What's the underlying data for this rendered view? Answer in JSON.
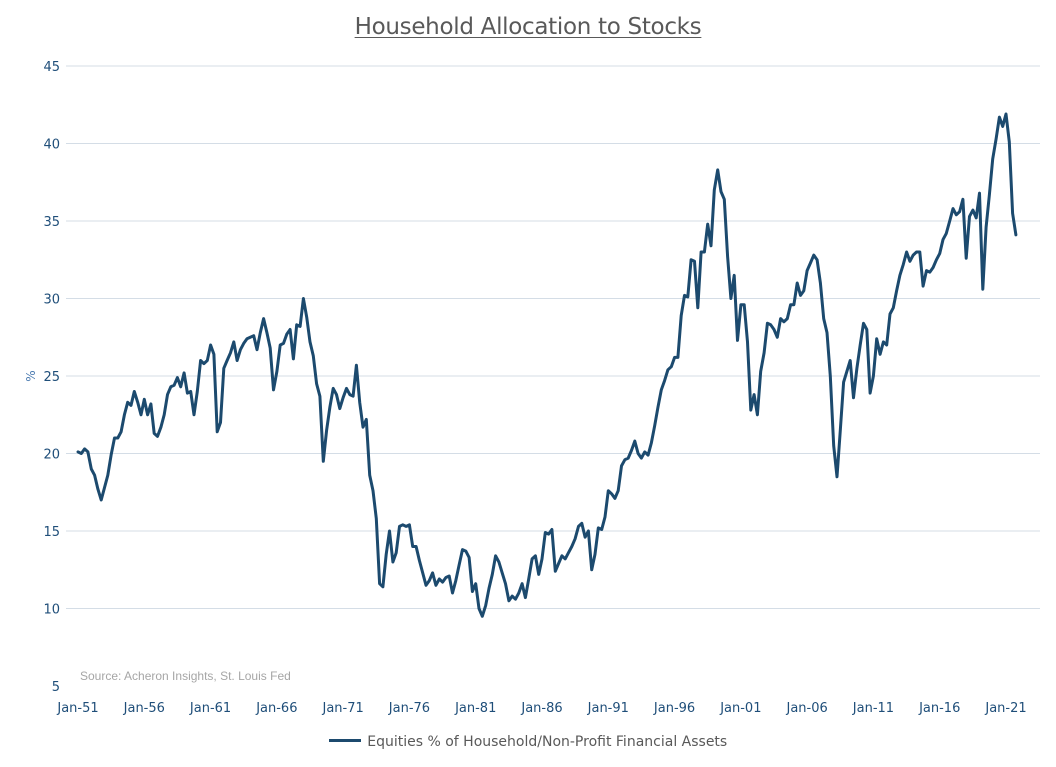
{
  "chart_data": {
    "type": "line",
    "title": "Household Allocation to Stocks",
    "ylabel": "%",
    "xlabel": "",
    "ylim": [
      5,
      45
    ],
    "yticks": [
      "5",
      "10",
      "15",
      "20",
      "25",
      "30",
      "35",
      "40",
      "45"
    ],
    "xticks": [
      "Jan-51",
      "Jan-56",
      "Jan-61",
      "Jan-66",
      "Jan-71",
      "Jan-76",
      "Jan-81",
      "Jan-86",
      "Jan-91",
      "Jan-96",
      "Jan-01",
      "Jan-06",
      "Jan-11",
      "Jan-16",
      "Jan-21"
    ],
    "x_start_year": 1951,
    "grid": "horizontal",
    "legend_position": "bottom",
    "source": "Source: Acheron Insights, St. Louis Fed",
    "series": [
      {
        "name": "Equities % of Household/Non-Profit Financial Assets",
        "color": "#1c4a6e",
        "points": [
          [
            1951.0,
            20.1
          ],
          [
            1951.25,
            20.0
          ],
          [
            1951.5,
            20.3
          ],
          [
            1951.75,
            20.1
          ],
          [
            1952.0,
            19.0
          ],
          [
            1952.25,
            18.6
          ],
          [
            1952.5,
            17.7
          ],
          [
            1952.75,
            17.0
          ],
          [
            1953.0,
            17.8
          ],
          [
            1953.25,
            18.6
          ],
          [
            1953.5,
            19.9
          ],
          [
            1953.75,
            21.0
          ],
          [
            1954.0,
            21.0
          ],
          [
            1954.25,
            21.4
          ],
          [
            1954.5,
            22.5
          ],
          [
            1954.75,
            23.3
          ],
          [
            1955.0,
            23.1
          ],
          [
            1955.25,
            24.0
          ],
          [
            1955.5,
            23.3
          ],
          [
            1955.75,
            22.5
          ],
          [
            1956.0,
            23.5
          ],
          [
            1956.25,
            22.5
          ],
          [
            1956.5,
            23.2
          ],
          [
            1956.75,
            21.3
          ],
          [
            1957.0,
            21.1
          ],
          [
            1957.25,
            21.7
          ],
          [
            1957.5,
            22.5
          ],
          [
            1957.75,
            23.8
          ],
          [
            1958.0,
            24.3
          ],
          [
            1958.25,
            24.4
          ],
          [
            1958.5,
            24.9
          ],
          [
            1958.75,
            24.3
          ],
          [
            1959.0,
            25.2
          ],
          [
            1959.25,
            23.9
          ],
          [
            1959.5,
            24.0
          ],
          [
            1959.75,
            22.5
          ],
          [
            1960.0,
            24.0
          ],
          [
            1960.25,
            26.0
          ],
          [
            1960.5,
            25.8
          ],
          [
            1960.75,
            26.0
          ],
          [
            1961.0,
            27.0
          ],
          [
            1961.25,
            26.4
          ],
          [
            1961.5,
            21.4
          ],
          [
            1961.75,
            22.0
          ],
          [
            1962.0,
            25.5
          ],
          [
            1962.25,
            26.0
          ],
          [
            1962.5,
            26.5
          ],
          [
            1962.75,
            27.2
          ],
          [
            1963.0,
            26.0
          ],
          [
            1963.25,
            26.7
          ],
          [
            1963.5,
            27.1
          ],
          [
            1963.75,
            27.4
          ],
          [
            1964.0,
            27.5
          ],
          [
            1964.25,
            27.6
          ],
          [
            1964.5,
            26.7
          ],
          [
            1964.75,
            27.8
          ],
          [
            1965.0,
            28.7
          ],
          [
            1965.25,
            27.8
          ],
          [
            1965.5,
            26.8
          ],
          [
            1965.75,
            24.1
          ],
          [
            1966.0,
            25.3
          ],
          [
            1966.25,
            27.0
          ],
          [
            1966.5,
            27.1
          ],
          [
            1966.75,
            27.7
          ],
          [
            1967.0,
            28.0
          ],
          [
            1967.25,
            26.1
          ],
          [
            1967.5,
            28.3
          ],
          [
            1967.75,
            28.2
          ],
          [
            1968.0,
            30.0
          ],
          [
            1968.25,
            28.8
          ],
          [
            1968.5,
            27.2
          ],
          [
            1968.75,
            26.3
          ],
          [
            1969.0,
            24.5
          ],
          [
            1969.25,
            23.7
          ],
          [
            1969.5,
            19.5
          ],
          [
            1969.75,
            21.5
          ],
          [
            1970.0,
            23.0
          ],
          [
            1970.25,
            24.2
          ],
          [
            1970.5,
            23.8
          ],
          [
            1970.75,
            22.9
          ],
          [
            1971.0,
            23.6
          ],
          [
            1971.25,
            24.2
          ],
          [
            1971.5,
            23.8
          ],
          [
            1971.75,
            23.7
          ],
          [
            1972.0,
            25.7
          ],
          [
            1972.25,
            23.3
          ],
          [
            1972.5,
            21.7
          ],
          [
            1972.75,
            22.2
          ],
          [
            1973.0,
            18.6
          ],
          [
            1973.25,
            17.6
          ],
          [
            1973.5,
            15.8
          ],
          [
            1973.75,
            11.6
          ],
          [
            1974.0,
            11.4
          ],
          [
            1974.25,
            13.5
          ],
          [
            1974.5,
            15.0
          ],
          [
            1974.75,
            13.0
          ],
          [
            1975.0,
            13.6
          ],
          [
            1975.25,
            15.3
          ],
          [
            1975.5,
            15.4
          ],
          [
            1975.75,
            15.3
          ],
          [
            1976.0,
            15.4
          ],
          [
            1976.25,
            14.0
          ],
          [
            1976.5,
            14.0
          ],
          [
            1976.75,
            13.1
          ],
          [
            1977.0,
            12.3
          ],
          [
            1977.25,
            11.5
          ],
          [
            1977.5,
            11.8
          ],
          [
            1977.75,
            12.3
          ],
          [
            1978.0,
            11.5
          ],
          [
            1978.25,
            11.9
          ],
          [
            1978.5,
            11.7
          ],
          [
            1978.75,
            12.0
          ],
          [
            1979.0,
            12.1
          ],
          [
            1979.25,
            11.0
          ],
          [
            1979.5,
            11.8
          ],
          [
            1979.75,
            12.8
          ],
          [
            1980.0,
            13.8
          ],
          [
            1980.25,
            13.7
          ],
          [
            1980.5,
            13.3
          ],
          [
            1980.75,
            11.1
          ],
          [
            1981.0,
            11.6
          ],
          [
            1981.25,
            10.0
          ],
          [
            1981.5,
            9.5
          ],
          [
            1981.75,
            10.2
          ],
          [
            1982.0,
            11.3
          ],
          [
            1982.25,
            12.2
          ],
          [
            1982.5,
            13.4
          ],
          [
            1982.75,
            13.0
          ],
          [
            1983.0,
            12.3
          ],
          [
            1983.25,
            11.6
          ],
          [
            1983.5,
            10.5
          ],
          [
            1983.75,
            10.8
          ],
          [
            1984.0,
            10.6
          ],
          [
            1984.25,
            11.0
          ],
          [
            1984.5,
            11.6
          ],
          [
            1984.75,
            10.7
          ],
          [
            1985.0,
            11.9
          ],
          [
            1985.25,
            13.2
          ],
          [
            1985.5,
            13.4
          ],
          [
            1985.75,
            12.2
          ],
          [
            1986.0,
            13.2
          ],
          [
            1986.25,
            14.9
          ],
          [
            1986.5,
            14.8
          ],
          [
            1986.75,
            15.1
          ],
          [
            1987.0,
            12.4
          ],
          [
            1987.25,
            12.9
          ],
          [
            1987.5,
            13.4
          ],
          [
            1987.75,
            13.2
          ],
          [
            1988.0,
            13.6
          ],
          [
            1988.25,
            14.0
          ],
          [
            1988.5,
            14.5
          ],
          [
            1988.75,
            15.3
          ],
          [
            1989.0,
            15.5
          ],
          [
            1989.25,
            14.6
          ],
          [
            1989.5,
            15.0
          ],
          [
            1989.75,
            12.5
          ],
          [
            1990.0,
            13.5
          ],
          [
            1990.25,
            15.2
          ],
          [
            1990.5,
            15.1
          ],
          [
            1990.75,
            15.9
          ],
          [
            1991.0,
            17.6
          ],
          [
            1991.25,
            17.4
          ],
          [
            1991.5,
            17.1
          ],
          [
            1991.75,
            17.6
          ],
          [
            1992.0,
            19.2
          ],
          [
            1992.25,
            19.6
          ],
          [
            1992.5,
            19.7
          ],
          [
            1992.75,
            20.2
          ],
          [
            1993.0,
            20.8
          ],
          [
            1993.25,
            20.0
          ],
          [
            1993.5,
            19.7
          ],
          [
            1993.75,
            20.1
          ],
          [
            1994.0,
            19.9
          ],
          [
            1994.25,
            20.7
          ],
          [
            1994.5,
            21.8
          ],
          [
            1994.75,
            23.0
          ],
          [
            1995.0,
            24.1
          ],
          [
            1995.25,
            24.7
          ],
          [
            1995.5,
            25.4
          ],
          [
            1995.75,
            25.6
          ],
          [
            1996.0,
            26.2
          ],
          [
            1996.25,
            26.2
          ],
          [
            1996.5,
            28.9
          ],
          [
            1996.75,
            30.2
          ],
          [
            1997.0,
            30.1
          ],
          [
            1997.25,
            32.5
          ],
          [
            1997.5,
            32.4
          ],
          [
            1997.75,
            29.4
          ],
          [
            1998.0,
            33.0
          ],
          [
            1998.25,
            33.0
          ],
          [
            1998.5,
            34.8
          ],
          [
            1998.75,
            33.4
          ],
          [
            1999.0,
            37.0
          ],
          [
            1999.25,
            38.3
          ],
          [
            1999.5,
            36.9
          ],
          [
            1999.75,
            36.4
          ],
          [
            2000.0,
            32.7
          ],
          [
            2000.25,
            30.0
          ],
          [
            2000.5,
            31.5
          ],
          [
            2000.75,
            27.3
          ],
          [
            2001.0,
            29.6
          ],
          [
            2001.25,
            29.6
          ],
          [
            2001.5,
            27.2
          ],
          [
            2001.75,
            22.8
          ],
          [
            2002.0,
            23.8
          ],
          [
            2002.25,
            22.5
          ],
          [
            2002.5,
            25.3
          ],
          [
            2002.75,
            26.5
          ],
          [
            2003.0,
            28.4
          ],
          [
            2003.25,
            28.3
          ],
          [
            2003.5,
            28.0
          ],
          [
            2003.75,
            27.5
          ],
          [
            2004.0,
            28.7
          ],
          [
            2004.25,
            28.5
          ],
          [
            2004.5,
            28.7
          ],
          [
            2004.75,
            29.6
          ],
          [
            2005.0,
            29.6
          ],
          [
            2005.25,
            31.0
          ],
          [
            2005.5,
            30.2
          ],
          [
            2005.75,
            30.5
          ],
          [
            2006.0,
            31.8
          ],
          [
            2006.25,
            32.3
          ],
          [
            2006.5,
            32.8
          ],
          [
            2006.75,
            32.5
          ],
          [
            2007.0,
            31.0
          ],
          [
            2007.25,
            28.7
          ],
          [
            2007.5,
            27.8
          ],
          [
            2007.75,
            25.0
          ],
          [
            2008.0,
            20.5
          ],
          [
            2008.25,
            18.5
          ],
          [
            2008.5,
            21.5
          ],
          [
            2008.75,
            24.6
          ],
          [
            2009.0,
            25.3
          ],
          [
            2009.25,
            26.0
          ],
          [
            2009.5,
            23.6
          ],
          [
            2009.75,
            25.5
          ],
          [
            2010.0,
            27.0
          ],
          [
            2010.25,
            28.4
          ],
          [
            2010.5,
            28.0
          ],
          [
            2010.75,
            23.9
          ],
          [
            2011.0,
            25.0
          ],
          [
            2011.25,
            27.4
          ],
          [
            2011.5,
            26.4
          ],
          [
            2011.75,
            27.2
          ],
          [
            2012.0,
            27.0
          ],
          [
            2012.25,
            29.0
          ],
          [
            2012.5,
            29.4
          ],
          [
            2012.75,
            30.5
          ],
          [
            2013.0,
            31.5
          ],
          [
            2013.25,
            32.2
          ],
          [
            2013.5,
            33.0
          ],
          [
            2013.75,
            32.4
          ],
          [
            2014.0,
            32.8
          ],
          [
            2014.25,
            33.0
          ],
          [
            2014.5,
            33.0
          ],
          [
            2014.75,
            30.8
          ],
          [
            2015.0,
            31.8
          ],
          [
            2015.25,
            31.7
          ],
          [
            2015.5,
            32.0
          ],
          [
            2015.75,
            32.5
          ],
          [
            2016.0,
            32.9
          ],
          [
            2016.25,
            33.8
          ],
          [
            2016.5,
            34.2
          ],
          [
            2016.75,
            35.0
          ],
          [
            2017.0,
            35.8
          ],
          [
            2017.25,
            35.4
          ],
          [
            2017.5,
            35.6
          ],
          [
            2017.75,
            36.4
          ],
          [
            2018.0,
            32.6
          ],
          [
            2018.25,
            35.3
          ],
          [
            2018.5,
            35.7
          ],
          [
            2018.75,
            35.2
          ],
          [
            2019.0,
            36.8
          ],
          [
            2019.25,
            30.6
          ],
          [
            2019.5,
            34.6
          ],
          [
            2019.75,
            36.7
          ],
          [
            2020.0,
            39.0
          ],
          [
            2020.25,
            40.3
          ],
          [
            2020.5,
            41.7
          ],
          [
            2020.75,
            41.1
          ],
          [
            2021.0,
            41.9
          ],
          [
            2021.25,
            40.1
          ],
          [
            2021.5,
            35.5
          ],
          [
            2021.75,
            34.1
          ]
        ]
      }
    ]
  }
}
